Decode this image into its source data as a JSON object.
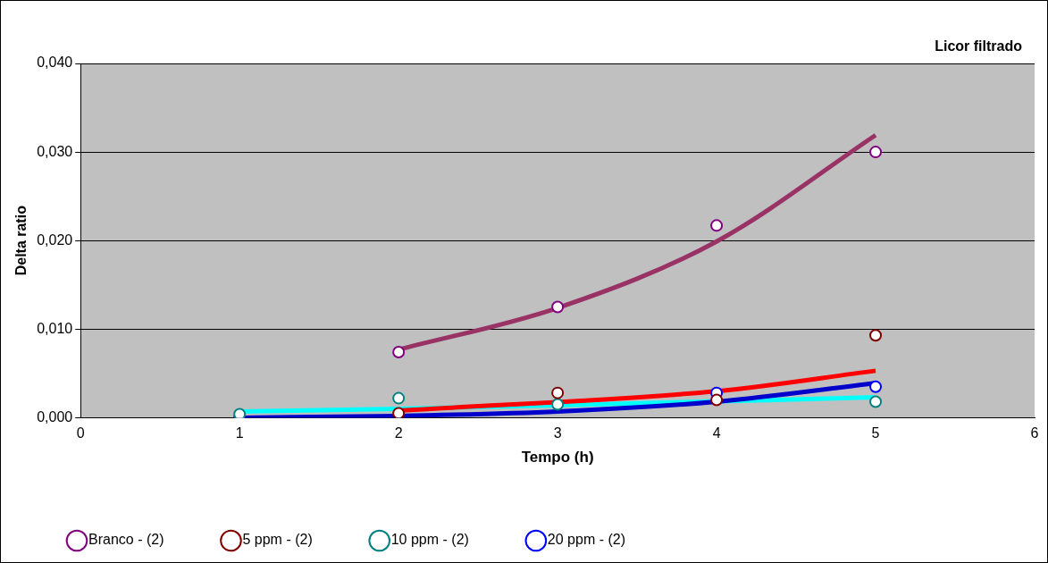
{
  "chart_data": {
    "type": "scatter",
    "title": "Licor filtrado",
    "xlabel": "Tempo (h)",
    "ylabel": "Delta ratio",
    "xlim": [
      0,
      6
    ],
    "xticks": [
      0,
      1,
      2,
      3,
      4,
      5,
      6
    ],
    "ylim": [
      0,
      0.04
    ],
    "yticks": [
      {
        "value": 0,
        "label": "0,000"
      },
      {
        "value": 0.01,
        "label": "0,010"
      },
      {
        "value": 0.02,
        "label": "0,020"
      },
      {
        "value": 0.03,
        "label": "0,030"
      },
      {
        "value": 0.04,
        "label": "0,040"
      }
    ],
    "grid": "y",
    "legend": "bottom",
    "marker": "circle",
    "series": [
      {
        "type": "line",
        "color": "#993366",
        "marker": "none",
        "x": [
          2,
          3,
          4,
          5
        ],
        "values": [
          0.0077,
          0.0124,
          0.0199,
          0.0319
        ]
      },
      {
        "type": "line",
        "color": "#ff0000",
        "marker": "none",
        "x": [
          2,
          4,
          5
        ],
        "values": [
          0.0008,
          0.003,
          0.0053
        ]
      },
      {
        "type": "line",
        "color": "#0000cc",
        "marker": "none",
        "x": [
          1,
          2,
          3,
          4,
          5
        ],
        "values": [
          0.0,
          0.0002,
          0.0007,
          0.0018,
          0.0039
        ]
      },
      {
        "type": "line",
        "color": "#00ffff",
        "marker": "none",
        "x": [
          1,
          2,
          3,
          5
        ],
        "values": [
          0.0007,
          0.001,
          0.0014,
          0.0023
        ]
      },
      {
        "name": "Branco - (2)",
        "color": "#800080",
        "x": [
          2,
          3,
          4,
          5
        ],
        "values": [
          0.0074,
          0.0125,
          0.0217,
          0.03
        ]
      },
      {
        "name": "5 ppm - (2)",
        "color": "#800000",
        "x": [
          2,
          3,
          4,
          5
        ],
        "values": [
          0.0005,
          0.0028,
          0.002,
          0.0093
        ]
      },
      {
        "name": "10 ppm - (2)",
        "color": "#008080",
        "x": [
          1,
          2,
          3,
          5
        ],
        "values": [
          0.0004,
          0.0022,
          0.0015,
          0.0018
        ]
      },
      {
        "name": "20 ppm - (2)",
        "color": "#0000ff",
        "x": [
          1,
          4,
          5
        ],
        "values": [
          0.0,
          0.0028,
          0.0035
        ]
      }
    ]
  }
}
